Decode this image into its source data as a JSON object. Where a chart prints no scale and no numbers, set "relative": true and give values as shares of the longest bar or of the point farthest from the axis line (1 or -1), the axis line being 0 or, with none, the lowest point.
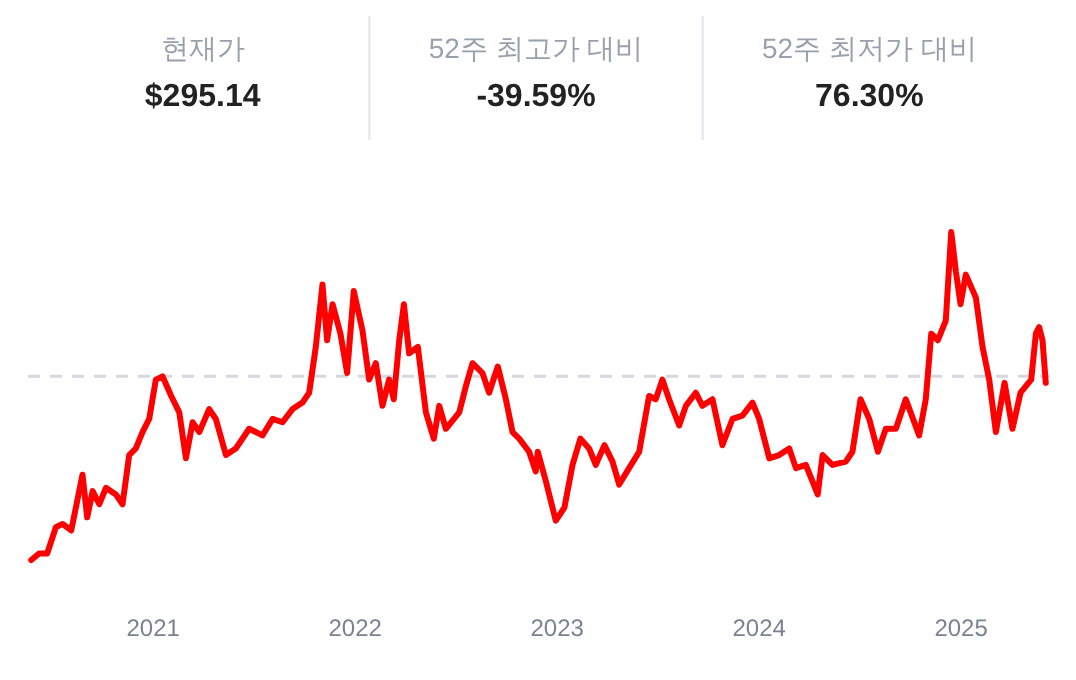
{
  "chart_data": [
    {
      "type": "other",
      "annotations": [
        "현재가",
        "$295.14",
        "52주 최고가 대비",
        "-39.59%",
        "52주 최저가 대비",
        "76.30%"
      ]
    },
    {
      "type": "line",
      "relative": true,
      "xlim": [
        2020.38,
        2025.44
      ],
      "xticks": [
        2021,
        2022,
        2023,
        2024,
        2025
      ],
      "grid": false,
      "line_style": "solid",
      "marker": "none",
      "ref_lines": [
        {
          "axis": "y",
          "value": 0.56,
          "color": "#d5d8e0",
          "line_style": "dashed"
        }
      ],
      "series": [
        {
          "color": "#ff0000",
          "x": [
            2020.396,
            2020.436,
            2020.475,
            2020.518,
            2020.551,
            2020.594,
            2020.65,
            2020.673,
            2020.7,
            2020.733,
            2020.766,
            2020.815,
            2020.848,
            2020.881,
            2020.914,
            2020.947,
            2020.98,
            2021.013,
            2021.046,
            2021.089,
            2021.129,
            2021.162,
            2021.195,
            2021.228,
            2021.277,
            2021.31,
            2021.36,
            2021.409,
            2021.475,
            2021.541,
            2021.591,
            2021.64,
            2021.69,
            2021.739,
            2021.772,
            2021.805,
            2021.838,
            2021.861,
            2021.888,
            2021.927,
            2021.96,
            2021.993,
            2022.036,
            2022.069,
            2022.102,
            2022.135,
            2022.168,
            2022.191,
            2022.218,
            2022.241,
            2022.267,
            2022.31,
            2022.35,
            2022.389,
            2022.416,
            2022.449,
            2022.515,
            2022.548,
            2022.581,
            2022.63,
            2022.663,
            2022.706,
            2022.746,
            2022.779,
            2022.812,
            2022.861,
            2022.894,
            2022.904,
            2022.944,
            2022.993,
            2023.036,
            2023.076,
            2023.115,
            2023.158,
            2023.191,
            2023.234,
            2023.274,
            2023.307,
            2023.356,
            2023.406,
            2023.455,
            2023.488,
            2023.521,
            2023.554,
            2023.604,
            2023.637,
            2023.686,
            2023.719,
            2023.769,
            2023.818,
            2023.868,
            2023.917,
            2023.967,
            2024.0,
            2024.05,
            2024.099,
            2024.149,
            2024.182,
            2024.231,
            2024.29,
            2024.314,
            2024.363,
            2024.429,
            2024.462,
            2024.502,
            2024.545,
            2024.588,
            2024.627,
            2024.677,
            2024.726,
            2024.792,
            2024.825,
            2024.852,
            2024.885,
            2024.924,
            2024.951,
            2024.974,
            2024.997,
            2025.023,
            2025.073,
            2025.106,
            2025.139,
            2025.172,
            2025.215,
            2025.254,
            2025.294,
            2025.347,
            2025.37,
            2025.386,
            2025.403,
            2025.419
          ],
          "values": [
            0.0,
            0.02,
            0.02,
            0.1,
            0.11,
            0.09,
            0.26,
            0.13,
            0.21,
            0.17,
            0.22,
            0.2,
            0.17,
            0.32,
            0.34,
            0.39,
            0.43,
            0.55,
            0.56,
            0.5,
            0.45,
            0.31,
            0.42,
            0.39,
            0.46,
            0.43,
            0.32,
            0.34,
            0.4,
            0.38,
            0.43,
            0.42,
            0.46,
            0.48,
            0.51,
            0.65,
            0.84,
            0.67,
            0.78,
            0.69,
            0.57,
            0.82,
            0.7,
            0.55,
            0.6,
            0.47,
            0.55,
            0.49,
            0.67,
            0.78,
            0.63,
            0.65,
            0.45,
            0.37,
            0.47,
            0.4,
            0.45,
            0.53,
            0.6,
            0.57,
            0.51,
            0.59,
            0.49,
            0.39,
            0.37,
            0.33,
            0.27,
            0.33,
            0.24,
            0.12,
            0.16,
            0.29,
            0.37,
            0.34,
            0.29,
            0.35,
            0.3,
            0.23,
            0.28,
            0.33,
            0.5,
            0.49,
            0.55,
            0.49,
            0.41,
            0.47,
            0.51,
            0.47,
            0.49,
            0.35,
            0.43,
            0.44,
            0.48,
            0.43,
            0.31,
            0.32,
            0.34,
            0.28,
            0.29,
            0.2,
            0.32,
            0.29,
            0.3,
            0.33,
            0.49,
            0.43,
            0.33,
            0.4,
            0.4,
            0.49,
            0.38,
            0.49,
            0.69,
            0.67,
            0.73,
            1.0,
            0.88,
            0.78,
            0.87,
            0.8,
            0.65,
            0.55,
            0.39,
            0.54,
            0.4,
            0.51,
            0.55,
            0.69,
            0.71,
            0.67,
            0.54
          ]
        }
      ]
    }
  ]
}
